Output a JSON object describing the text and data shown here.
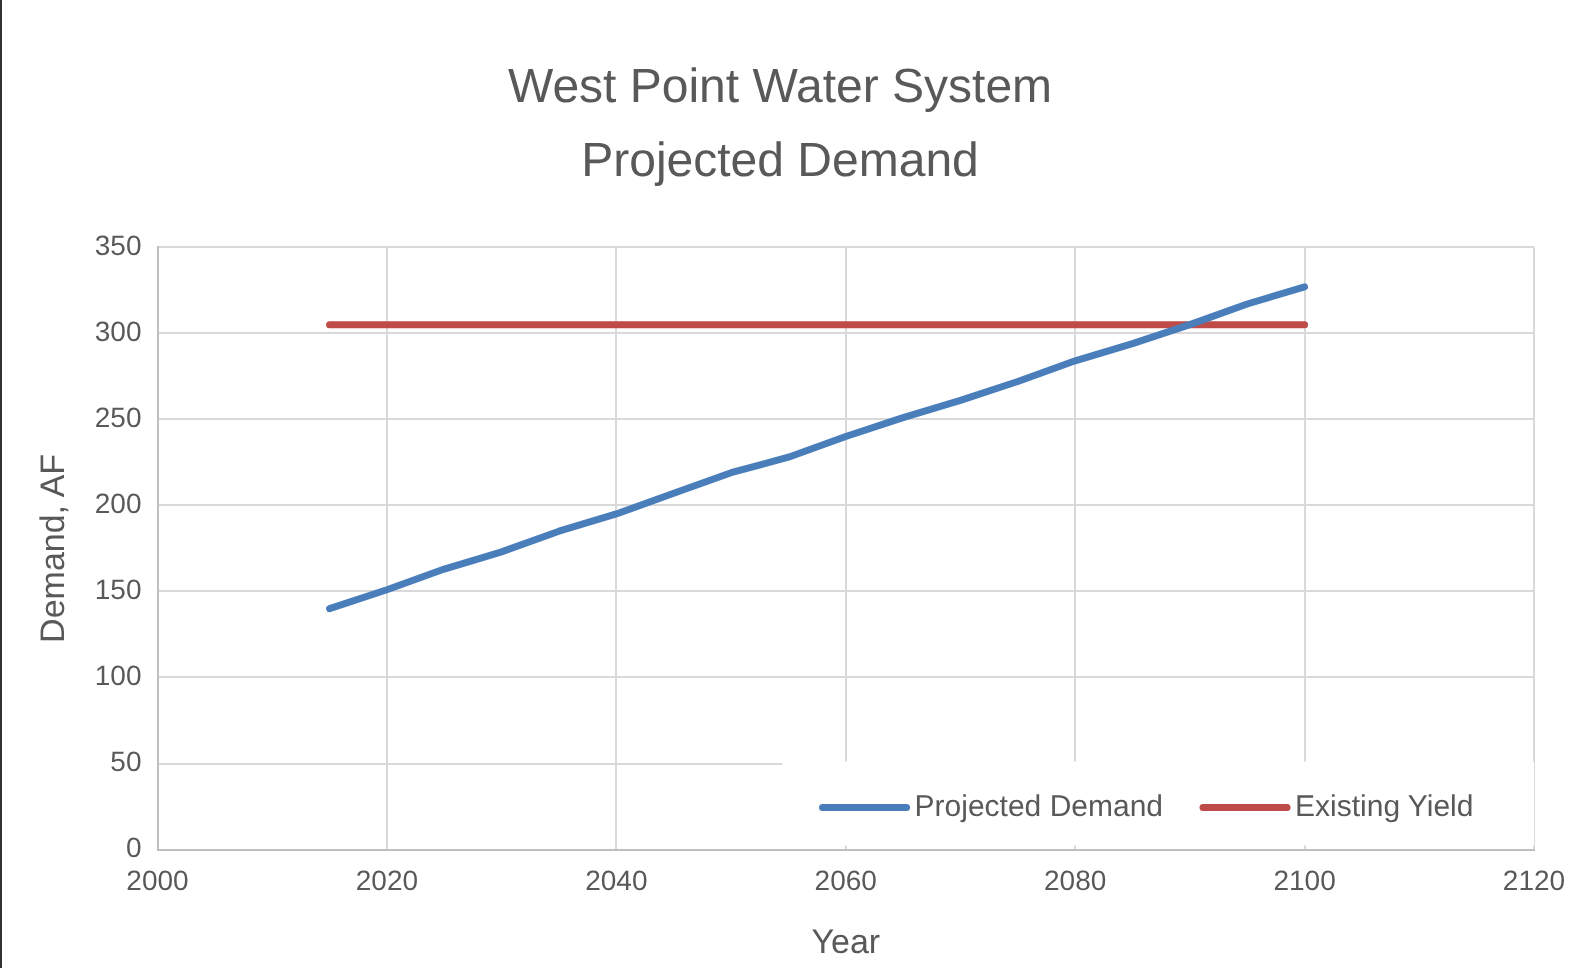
{
  "chart_data": {
    "type": "line",
    "title": "West Point Water System",
    "subtitle": "Projected Demand",
    "xlabel": "Year",
    "ylabel": "Demand, AF",
    "x": [
      2015,
      2020,
      2025,
      2030,
      2035,
      2040,
      2045,
      2050,
      2055,
      2060,
      2065,
      2070,
      2075,
      2080,
      2085,
      2090,
      2095,
      2100
    ],
    "series": [
      {
        "name": "Projected Demand",
        "color": "#4a7ebb",
        "values": [
          140,
          151,
          163,
          173,
          185,
          195,
          207,
          219,
          228,
          240,
          251,
          261,
          272,
          284,
          294,
          305,
          317,
          327
        ]
      },
      {
        "name": "Existing Yield",
        "color": "#be4b48",
        "values": [
          305,
          305,
          305,
          305,
          305,
          305,
          305,
          305,
          305,
          305,
          305,
          305,
          305,
          305,
          305,
          305,
          305,
          305
        ]
      }
    ],
    "xlim": [
      2000,
      2120
    ],
    "xticks": [
      2000,
      2020,
      2040,
      2060,
      2080,
      2100,
      2120
    ],
    "ylim": [
      0,
      350
    ],
    "yticks": [
      0,
      50,
      100,
      150,
      200,
      250,
      300,
      350
    ],
    "grid": true,
    "legend": "bottom right",
    "marker": "none",
    "line_style": "solid"
  }
}
